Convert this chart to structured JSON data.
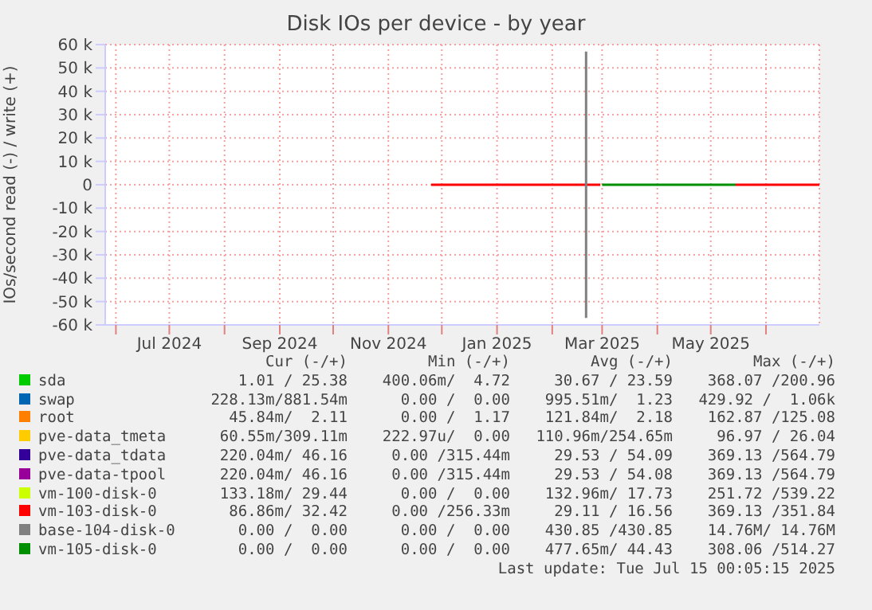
{
  "chart_data": {
    "type": "line",
    "title": "Disk IOs per device - by year",
    "ylabel": "IOs/second read (-) / write (+)",
    "xlim": [
      "2024-05-26",
      "2025-07-01"
    ],
    "xticks": [
      {
        "value": "2024-06-01",
        "label": null
      },
      {
        "value": "2024-07-01",
        "label": "Jul 2024"
      },
      {
        "value": "2024-08-01",
        "label": null
      },
      {
        "value": "2024-09-01",
        "label": "Sep 2024"
      },
      {
        "value": "2024-10-01",
        "label": null
      },
      {
        "value": "2024-11-01",
        "label": "Nov 2024"
      },
      {
        "value": "2024-12-01",
        "label": null
      },
      {
        "value": "2025-01-01",
        "label": "Jan 2025"
      },
      {
        "value": "2025-02-01",
        "label": null
      },
      {
        "value": "2025-03-01",
        "label": "Mar 2025"
      },
      {
        "value": "2025-04-01",
        "label": null
      },
      {
        "value": "2025-05-01",
        "label": "May 2025"
      },
      {
        "value": "2025-06-01",
        "label": null
      }
    ],
    "ylim": [
      -60000,
      60000
    ],
    "yticks": [
      {
        "value": -60000,
        "label": "-60 k"
      },
      {
        "value": -50000,
        "label": "-50 k"
      },
      {
        "value": -40000,
        "label": "-40 k"
      },
      {
        "value": -30000,
        "label": "-30 k"
      },
      {
        "value": -20000,
        "label": "-20 k"
      },
      {
        "value": -10000,
        "label": "-10 k"
      },
      0,
      {
        "value": 10000,
        "label": "10 k"
      },
      {
        "value": 20000,
        "label": "20 k"
      },
      {
        "value": 30000,
        "label": "30 k"
      },
      {
        "value": 40000,
        "label": "40 k"
      },
      {
        "value": 50000,
        "label": "50 k"
      },
      {
        "value": 60000,
        "label": "60 k"
      }
    ],
    "grid": true,
    "legend": "bottom",
    "marker": "none",
    "line_style": "solid",
    "series": [
      {
        "name": "sda",
        "color": "#00cc00"
      },
      {
        "name": "swap",
        "color": "#0066b3"
      },
      {
        "name": "root",
        "color": "#ff8000"
      },
      {
        "name": "pve-data_tmeta",
        "color": "#ffcc00"
      },
      {
        "name": "pve-data_tdata",
        "color": "#330099"
      },
      {
        "name": "pve-data-tpool",
        "color": "#990099"
      },
      {
        "name": "vm-100-disk-0",
        "color": "#ccff00"
      },
      {
        "name": "vm-103-disk-0",
        "color": "#ff0000",
        "x": [
          "2024-11-25",
          "2025-02-28",
          "2025-03-10",
          "2025-05-15",
          "2025-07-01"
        ],
        "values": [
          0,
          0,
          null,
          0,
          0
        ]
      },
      {
        "name": "base-104-disk-0",
        "color": "#808080",
        "x": [
          "2025-02-20",
          "2025-02-20",
          "2025-02-20"
        ],
        "values": [
          57000,
          0,
          -57000
        ]
      },
      {
        "name": "vm-105-disk-0",
        "color": "#008f00",
        "x": [
          "2025-03-01",
          "2025-05-15"
        ],
        "values": [
          0,
          0
        ]
      }
    ],
    "annotations": [
      "Cur (-/+)",
      "Min (-/+)",
      "Avg (-/+)",
      "Max (-/+)",
      "1.01 / 25.38",
      "400.06m/  4.72",
      "30.67 / 23.59",
      "368.07 /200.96",
      "228.13m/881.54m",
      "0.00 /  0.00",
      "995.51m/  1.23",
      "429.92 /  1.06k",
      "45.84m/  2.11",
      "0.00 /  1.17",
      "121.84m/  2.18",
      "162.87 /125.08",
      "60.55m/309.11m",
      "222.97u/  0.00",
      "110.96m/254.65m",
      "96.97 / 26.04",
      "220.04m/ 46.16",
      "0.00 /315.44m",
      "29.53 / 54.09",
      "369.13 /564.79",
      "220.04m/ 46.16",
      "0.00 /315.44m",
      "29.53 / 54.08",
      "369.13 /564.79",
      "133.18m/ 29.44",
      "0.00 /  0.00",
      "132.96m/ 17.73",
      "251.72 /539.22",
      "86.86m/ 32.42",
      "0.00 /256.33m",
      "29.11 / 16.56",
      "369.13 /351.84",
      "0.00 /  0.00",
      "0.00 /  0.00",
      "430.85 /430.85",
      "14.76M/ 14.76M",
      "0.00 /  0.00",
      "0.00 /  0.00",
      "477.65m/ 44.43",
      "308.06 /514.27",
      "Last update: Tue Jul 15 00:05:15 2025"
    ]
  }
}
